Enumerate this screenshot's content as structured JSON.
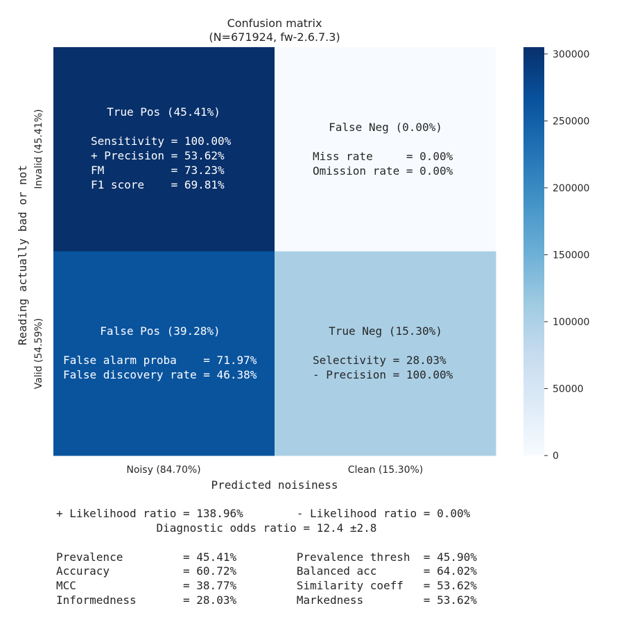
{
  "chart_data": {
    "type": "heatmap",
    "title": "Confusion matrix",
    "subtitle": "(N=671924, fw-2.6.7.3)",
    "xlabel": "Predicted noisiness",
    "ylabel": "Reading actually bad or not",
    "x_categories": [
      "Noisy (84.70%)",
      "Clean (15.30%)"
    ],
    "y_categories": [
      "Invalid (45.41%)",
      "Valid (54.59%)"
    ],
    "values": [
      [
        305100,
        0
      ],
      [
        263900,
        102800
      ]
    ],
    "colorbar": {
      "min": 0,
      "max": 305100,
      "ticks": [
        "0",
        "50000",
        "100000",
        "150000",
        "200000",
        "250000",
        "300000"
      ]
    },
    "cells": [
      {
        "title": "True Pos (45.41%)",
        "lines": [
          "Sensitivity = 100.00%",
          "+ Precision = 53.62%",
          "FM          = 73.23%",
          "F1 score    = 69.81%"
        ]
      },
      {
        "title": "False Neg (0.00%)",
        "lines": [
          "Miss rate     = 0.00%",
          "Omission rate = 0.00%"
        ]
      },
      {
        "title": "False Pos (39.28%)",
        "lines": [
          "False alarm proba    = 71.97%",
          "False discovery rate = 46.38%"
        ]
      },
      {
        "title": "True Neg (15.30%)",
        "lines": [
          "Selectivity = 28.03%",
          "- Precision = 100.00%"
        ]
      }
    ],
    "stats": {
      "likelihood_lines": [
        "+ Likelihood ratio = 138.96%        - Likelihood ratio = 0.00%",
        "               Diagnostic odds ratio = 12.4 ±2.8"
      ],
      "table_lines": [
        "Prevalence         = 45.41%         Prevalence thresh  = 45.90%",
        "Accuracy           = 60.72%         Balanced acc       = 64.02%",
        "MCC                = 38.77%         Similarity coeff   = 53.62%",
        "Informedness       = 28.03%         Markedness         = 53.62%"
      ]
    }
  }
}
